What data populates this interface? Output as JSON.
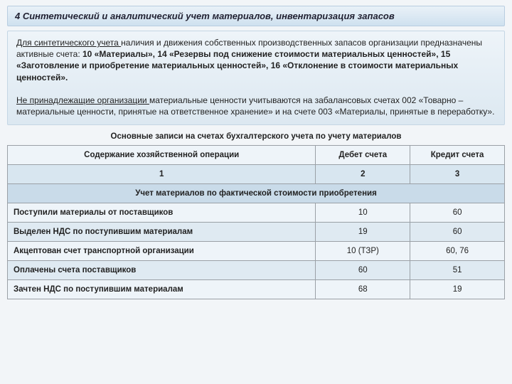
{
  "title": "4 Синтетический и аналитический учет материалов, инвентаризация запасов",
  "info": {
    "p1_u": "Для синтетического учета ",
    "p1_rest": "наличия и движения собственных производственных запасов организации предназначены активные счета: ",
    "p1_bold": "10 «Материалы», 14 «Резервы под снижение стоимости материальных ценностей», 15 «Заготовление и приобретение материальных ценностей», 16 «Отклонение в стоимости материальных ценностей».",
    "p2_u": "Не принадлежащие организации ",
    "p2_rest": "материальные ценности учитываются на забалансовых счетах 002 «Товарно – материальные ценности, принятые на ответственное хранение» и на счете 003 «Материалы, принятые в переработку»."
  },
  "subheading": "Основные записи на счетах бухгалтерского учета по учету материалов",
  "table": {
    "headers": {
      "desc": "Содержание хозяйственной операции",
      "debit": "Дебет счета",
      "credit": "Кредит счета"
    },
    "numrow": [
      "1",
      "2",
      "3"
    ],
    "section": "Учет материалов по фактической стоимости приобретения",
    "rows": [
      {
        "desc": "Поступили материалы от поставщиков",
        "debit": "10",
        "credit": "60"
      },
      {
        "desc": "Выделен НДС по поступившим материалам",
        "debit": "19",
        "credit": "60"
      },
      {
        "desc": "Акцептован счет транспортной организации",
        "debit": "10 (ТЗР)",
        "credit": "60, 76"
      },
      {
        "desc": "Оплачены счета поставщиков",
        "debit": "60",
        "credit": "51"
      },
      {
        "desc": "Зачтен НДС по поступившим материалам",
        "debit": "68",
        "credit": "19"
      }
    ]
  },
  "colors": {
    "header_bg_top": "#e9f1f8",
    "header_bg_bot": "#cfe1ef",
    "info_bg_top": "#eef4f9",
    "info_bg_bot": "#dce8f1",
    "row_bg": "#eef4f9",
    "row_bg_alt": "#dfeaf2",
    "numrow_bg": "#d8e6f0",
    "section_bg": "#c9dbe9",
    "border": "#9aa0a6"
  }
}
